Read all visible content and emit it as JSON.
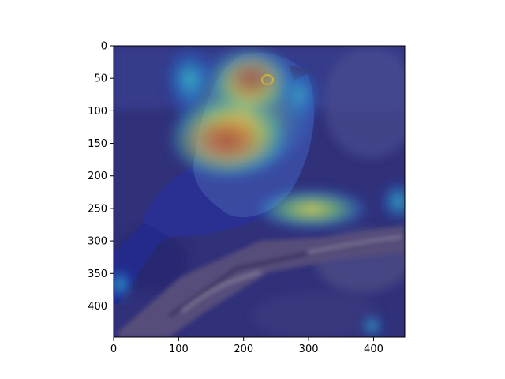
{
  "chart_data": {
    "type": "heatmap",
    "title": "",
    "xlabel": "",
    "ylabel": "",
    "xlim": [
      0,
      448
    ],
    "ylim": [
      448,
      0
    ],
    "x_ticks": [
      0,
      100,
      200,
      300,
      400
    ],
    "y_ticks": [
      0,
      50,
      100,
      150,
      200,
      250,
      300,
      350,
      400
    ],
    "x_tick_labels": [
      "0",
      "100",
      "200",
      "300",
      "400"
    ],
    "y_tick_labels": [
      "0",
      "50",
      "100",
      "150",
      "200",
      "250",
      "300",
      "350",
      "400"
    ],
    "grid": false,
    "colormap": "jet",
    "image_subject": "bird perched on a branch with an overlaid class-activation heatmap",
    "activation_peaks": [
      {
        "x": 170,
        "y": 140,
        "intensity": 1.0
      },
      {
        "x": 210,
        "y": 45,
        "intensity": 0.8
      },
      {
        "x": 300,
        "y": 250,
        "intensity": 0.6
      },
      {
        "x": 120,
        "y": 45,
        "intensity": 0.4
      },
      {
        "x": 440,
        "y": 240,
        "intensity": 0.35
      },
      {
        "x": 10,
        "y": 365,
        "intensity": 0.3
      },
      {
        "x": 395,
        "y": 430,
        "intensity": 0.3
      }
    ]
  },
  "colors": {
    "background_low": "#2c2c78",
    "peak": "#d42020",
    "bird_head": "#e8c24a",
    "bird_body": "#2a2f8c",
    "branch": "#5a4f78"
  }
}
